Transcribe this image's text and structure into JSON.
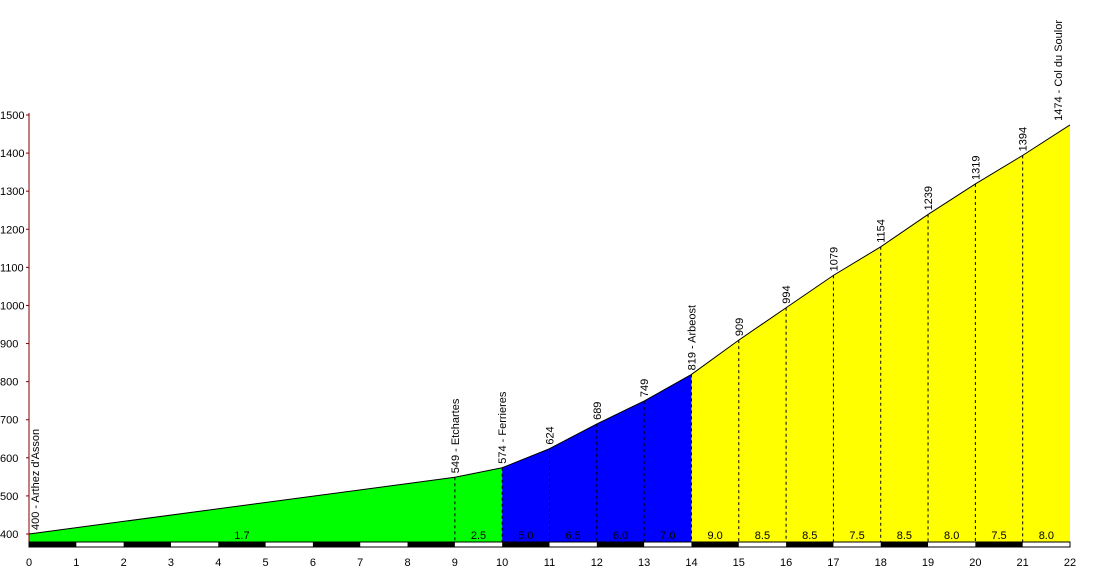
{
  "chart_data": {
    "type": "area",
    "title": "",
    "xlabel": "",
    "ylabel": "",
    "xlim": [
      0,
      22
    ],
    "ylim": [
      390,
      1500
    ],
    "x_ticks": [
      "0",
      "1",
      "2",
      "3",
      "4",
      "5",
      "6",
      "7",
      "8",
      "9",
      "10",
      "11",
      "12",
      "13",
      "14",
      "15",
      "16",
      "17",
      "18",
      "19",
      "20",
      "21",
      "22"
    ],
    "y_ticks": [
      "400",
      "500",
      "600",
      "700",
      "800",
      "900",
      "1000",
      "1100",
      "1200",
      "1300",
      "1400",
      "1500"
    ],
    "profile": [
      {
        "x": 0,
        "y": 400
      },
      {
        "x": 9,
        "y": 549
      },
      {
        "x": 10,
        "y": 574
      },
      {
        "x": 11,
        "y": 624
      },
      {
        "x": 12,
        "y": 689
      },
      {
        "x": 13,
        "y": 749
      },
      {
        "x": 14,
        "y": 819
      },
      {
        "x": 15,
        "y": 909
      },
      {
        "x": 16,
        "y": 994
      },
      {
        "x": 17,
        "y": 1079
      },
      {
        "x": 18,
        "y": 1154
      },
      {
        "x": 19,
        "y": 1239
      },
      {
        "x": 20,
        "y": 1319
      },
      {
        "x": 21,
        "y": 1394
      },
      {
        "x": 22,
        "y": 1474
      }
    ],
    "segments": [
      {
        "from": 0,
        "to": 10,
        "color": "#00ff00"
      },
      {
        "from": 10,
        "to": 14,
        "color": "#0000ff"
      },
      {
        "from": 14,
        "to": 22,
        "color": "#ffff00"
      }
    ],
    "point_labels": [
      {
        "x": 0,
        "text": "400 - Arthez d'Asson"
      },
      {
        "x": 9,
        "text": "549 - Etchartes"
      },
      {
        "x": 10,
        "text": "574 - Ferrieres"
      },
      {
        "x": 11,
        "text": "624"
      },
      {
        "x": 12,
        "text": "689"
      },
      {
        "x": 13,
        "text": "749"
      },
      {
        "x": 14,
        "text": "819 - Arbeost"
      },
      {
        "x": 15,
        "text": "909"
      },
      {
        "x": 16,
        "text": "994"
      },
      {
        "x": 17,
        "text": "1079"
      },
      {
        "x": 18,
        "text": "1154"
      },
      {
        "x": 19,
        "text": "1239"
      },
      {
        "x": 20,
        "text": "1319"
      },
      {
        "x": 21,
        "text": "1394"
      },
      {
        "x": 22,
        "text": "1474 - Col du Soulor"
      }
    ],
    "gradients": [
      {
        "x": 4.5,
        "text": "1.7"
      },
      {
        "x": 9.5,
        "text": "2.5"
      },
      {
        "x": 10.5,
        "text": "5.0"
      },
      {
        "x": 11.5,
        "text": "6.5"
      },
      {
        "x": 12.5,
        "text": "6.0"
      },
      {
        "x": 13.5,
        "text": "7.0"
      },
      {
        "x": 14.5,
        "text": "9.0"
      },
      {
        "x": 15.5,
        "text": "8.5"
      },
      {
        "x": 16.5,
        "text": "8.5"
      },
      {
        "x": 17.5,
        "text": "7.5"
      },
      {
        "x": 18.5,
        "text": "8.5"
      },
      {
        "x": 19.5,
        "text": "8.0"
      },
      {
        "x": 20.5,
        "text": "7.5"
      },
      {
        "x": 21.5,
        "text": "8.0"
      }
    ],
    "colors": {
      "line": "#000000",
      "axis": "#800000",
      "ruler": "#000000"
    }
  }
}
